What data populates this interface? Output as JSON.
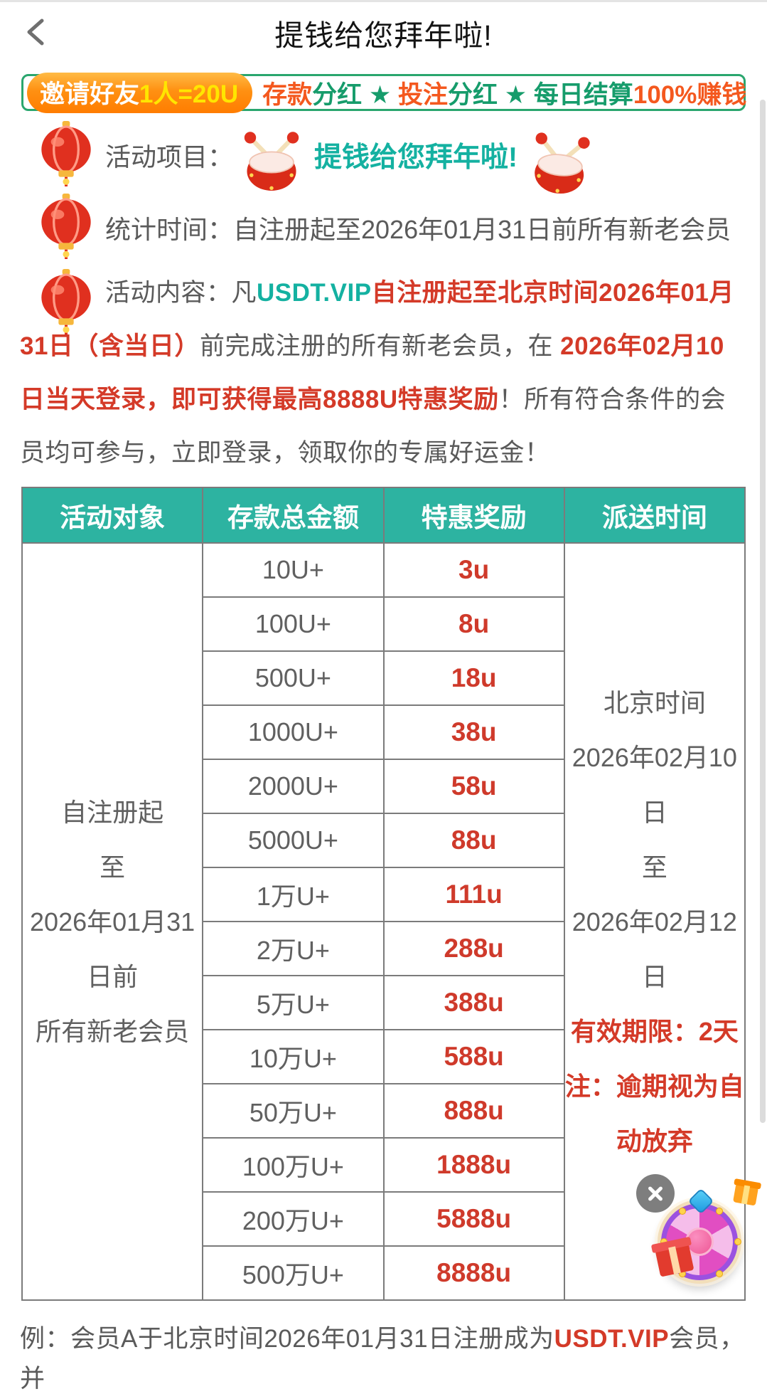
{
  "colors": {
    "teal": "#14b1a1",
    "red": "#d43a28",
    "orange": "#f4581e",
    "green": "#169c6b",
    "header_teal": "#2db3a1",
    "text_gray": "#5a5a5a",
    "table_border": "#7b7b7b",
    "pill_yellow": "#ffe600"
  },
  "header": {
    "title": "提钱给您拜年啦!"
  },
  "banner": {
    "pill_text_white": "邀请好友",
    "pill_text_yellow": "1人=20U",
    "segments": [
      {
        "text": "存款",
        "style": "orange"
      },
      {
        "text": "分红",
        "style": "green"
      },
      {
        "text": " ★ ",
        "style": "green"
      },
      {
        "text": "投注",
        "style": "orange"
      },
      {
        "text": "分红",
        "style": "green"
      },
      {
        "text": " ★ ",
        "style": "green"
      },
      {
        "text": "每日结算",
        "style": "green"
      },
      {
        "text": "100%赚钱",
        "style": "orange"
      }
    ]
  },
  "info": {
    "project_label": "活动项目：",
    "project_title": "提钱给您拜年啦!",
    "stats_text": "统计时间：自注册起至2026年01月31日前所有新老会员",
    "content_segments": [
      {
        "text": "活动内容：凡",
        "style": "gray"
      },
      {
        "text": "USDT.VIP",
        "style": "teal"
      },
      {
        "text": "自注册起至北京时间2026年01月31日（含当日）",
        "style": "red"
      },
      {
        "text": "前完成注册的所有新老会员，在 ",
        "style": "gray"
      },
      {
        "text": "2026年02月10日当天登录，即可获得最高8888U特惠奖励",
        "style": "red"
      },
      {
        "text": "！所有符合条件的会员均可参与，立即登录，领取你的专属好运金！",
        "style": "gray"
      }
    ]
  },
  "table": {
    "headers": [
      "活动对象",
      "存款总金额",
      "特惠奖励",
      "派送时间"
    ],
    "audience_lines": [
      "自注册起",
      "至",
      "2026年01月31",
      "日前",
      "所有新老会员"
    ],
    "tiers": [
      {
        "deposit": "10U+",
        "reward": "3u"
      },
      {
        "deposit": "100U+",
        "reward": "8u"
      },
      {
        "deposit": "500U+",
        "reward": "18u"
      },
      {
        "deposit": "1000U+",
        "reward": "38u"
      },
      {
        "deposit": "2000U+",
        "reward": "58u"
      },
      {
        "deposit": "5000U+",
        "reward": "88u"
      },
      {
        "deposit": "1万U+",
        "reward": "111u"
      },
      {
        "deposit": "2万U+",
        "reward": "288u"
      },
      {
        "deposit": "5万U+",
        "reward": "388u"
      },
      {
        "deposit": "10万U+",
        "reward": "588u"
      },
      {
        "deposit": "50万U+",
        "reward": "888u"
      },
      {
        "deposit": "100万U+",
        "reward": "1888u"
      },
      {
        "deposit": "200万U+",
        "reward": "5888u"
      },
      {
        "deposit": "500万U+",
        "reward": "8888u"
      }
    ],
    "delivery_lines": [
      "北京时间",
      "2026年02月10",
      "日",
      "至",
      "2026年02月12",
      "日"
    ],
    "delivery_note_lines": [
      "有效期限：2天",
      "注：逾期视为自",
      "动放弃"
    ]
  },
  "footer": {
    "segments": [
      {
        "text": "例：会员A于北京时间2026年01月31日注册成为",
        "style": "gray"
      },
      {
        "text": "USDT.VIP",
        "style": "red"
      },
      {
        "text": "会员，并",
        "style": "gray"
      }
    ]
  }
}
